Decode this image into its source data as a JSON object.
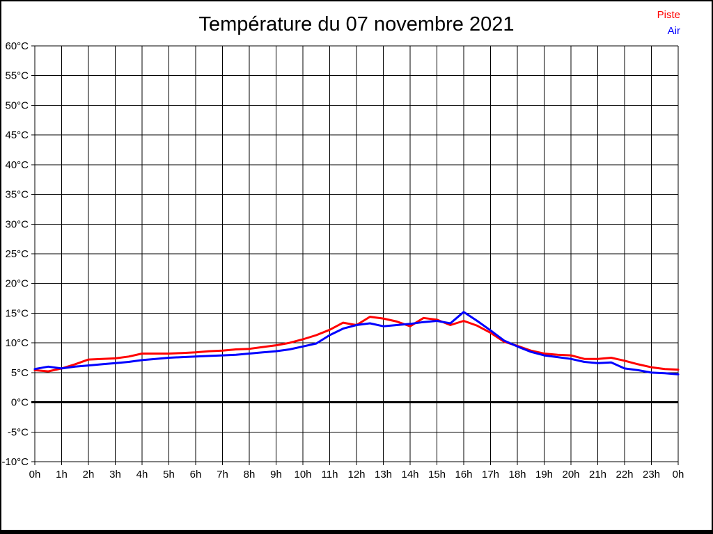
{
  "header": {
    "title": "Température du 07 novembre 2021"
  },
  "legend": {
    "items": [
      {
        "label": "Piste",
        "color": "#ff0000"
      },
      {
        "label": "Air",
        "color": "#0000ff"
      }
    ]
  },
  "chart_data": {
    "type": "line",
    "title": "Température du 07 novembre 2021",
    "xlabel": "",
    "ylabel": "",
    "xlim": [
      0,
      24
    ],
    "ylim": [
      -10,
      60
    ],
    "y_step": 5,
    "grid": true,
    "legend_position": "top-right",
    "axis_color": "#000000",
    "zero_line": {
      "value": 0,
      "color": "#000000",
      "width": 3
    },
    "x_tick_labels": [
      "0h",
      "1h",
      "2h",
      "3h",
      "4h",
      "5h",
      "6h",
      "7h",
      "8h",
      "9h",
      "10h",
      "11h",
      "12h",
      "13h",
      "14h",
      "15h",
      "16h",
      "17h",
      "18h",
      "19h",
      "20h",
      "21h",
      "22h",
      "23h",
      "0h"
    ],
    "y_tick_labels": [
      "60°C",
      "55°C",
      "50°C",
      "45°C",
      "40°C",
      "35°C",
      "30°C",
      "25°C",
      "20°C",
      "15°C",
      "10°C",
      "5°C",
      "0°C",
      "-5°C",
      "-10°C"
    ],
    "x": [
      0,
      0.5,
      1,
      1.5,
      2,
      2.5,
      3,
      3.5,
      4,
      4.5,
      5,
      5.5,
      6,
      6.5,
      7,
      7.5,
      8,
      8.5,
      9,
      9.5,
      10,
      10.5,
      11,
      11.5,
      12,
      12.5,
      13,
      13.5,
      14,
      14.5,
      15,
      15.5,
      16,
      16.5,
      17,
      17.5,
      18,
      18.5,
      19,
      19.5,
      20,
      20.5,
      21,
      21.5,
      22,
      22.5,
      23,
      23.5,
      24
    ],
    "series": [
      {
        "name": "Piste",
        "color": "#ff0000",
        "values": [
          5.4,
          5.2,
          5.7,
          6.4,
          7.2,
          7.3,
          7.4,
          7.7,
          8.2,
          8.2,
          8.2,
          8.3,
          8.4,
          8.6,
          8.7,
          8.9,
          9.0,
          9.3,
          9.6,
          10.0,
          10.6,
          11.3,
          12.2,
          13.4,
          13.0,
          14.4,
          14.1,
          13.6,
          12.8,
          14.2,
          13.9,
          13.0,
          13.7,
          12.9,
          11.7,
          10.2,
          9.5,
          8.7,
          8.2,
          8.0,
          7.9,
          7.3,
          7.3,
          7.5,
          7.0,
          6.4,
          5.9,
          5.6,
          5.5
        ]
      },
      {
        "name": "Air",
        "color": "#0000ff",
        "values": [
          5.6,
          6.0,
          5.7,
          6.0,
          6.2,
          6.4,
          6.6,
          6.8,
          7.1,
          7.3,
          7.5,
          7.6,
          7.7,
          7.8,
          7.9,
          8.0,
          8.2,
          8.4,
          8.6,
          8.9,
          9.4,
          9.9,
          11.3,
          12.4,
          13.0,
          13.3,
          12.8,
          13.0,
          13.2,
          13.5,
          13.7,
          13.3,
          15.2,
          13.7,
          12.1,
          10.4,
          9.4,
          8.5,
          7.9,
          7.6,
          7.3,
          6.8,
          6.6,
          6.7,
          5.7,
          5.4,
          5.0,
          4.9,
          4.7
        ]
      }
    ]
  }
}
